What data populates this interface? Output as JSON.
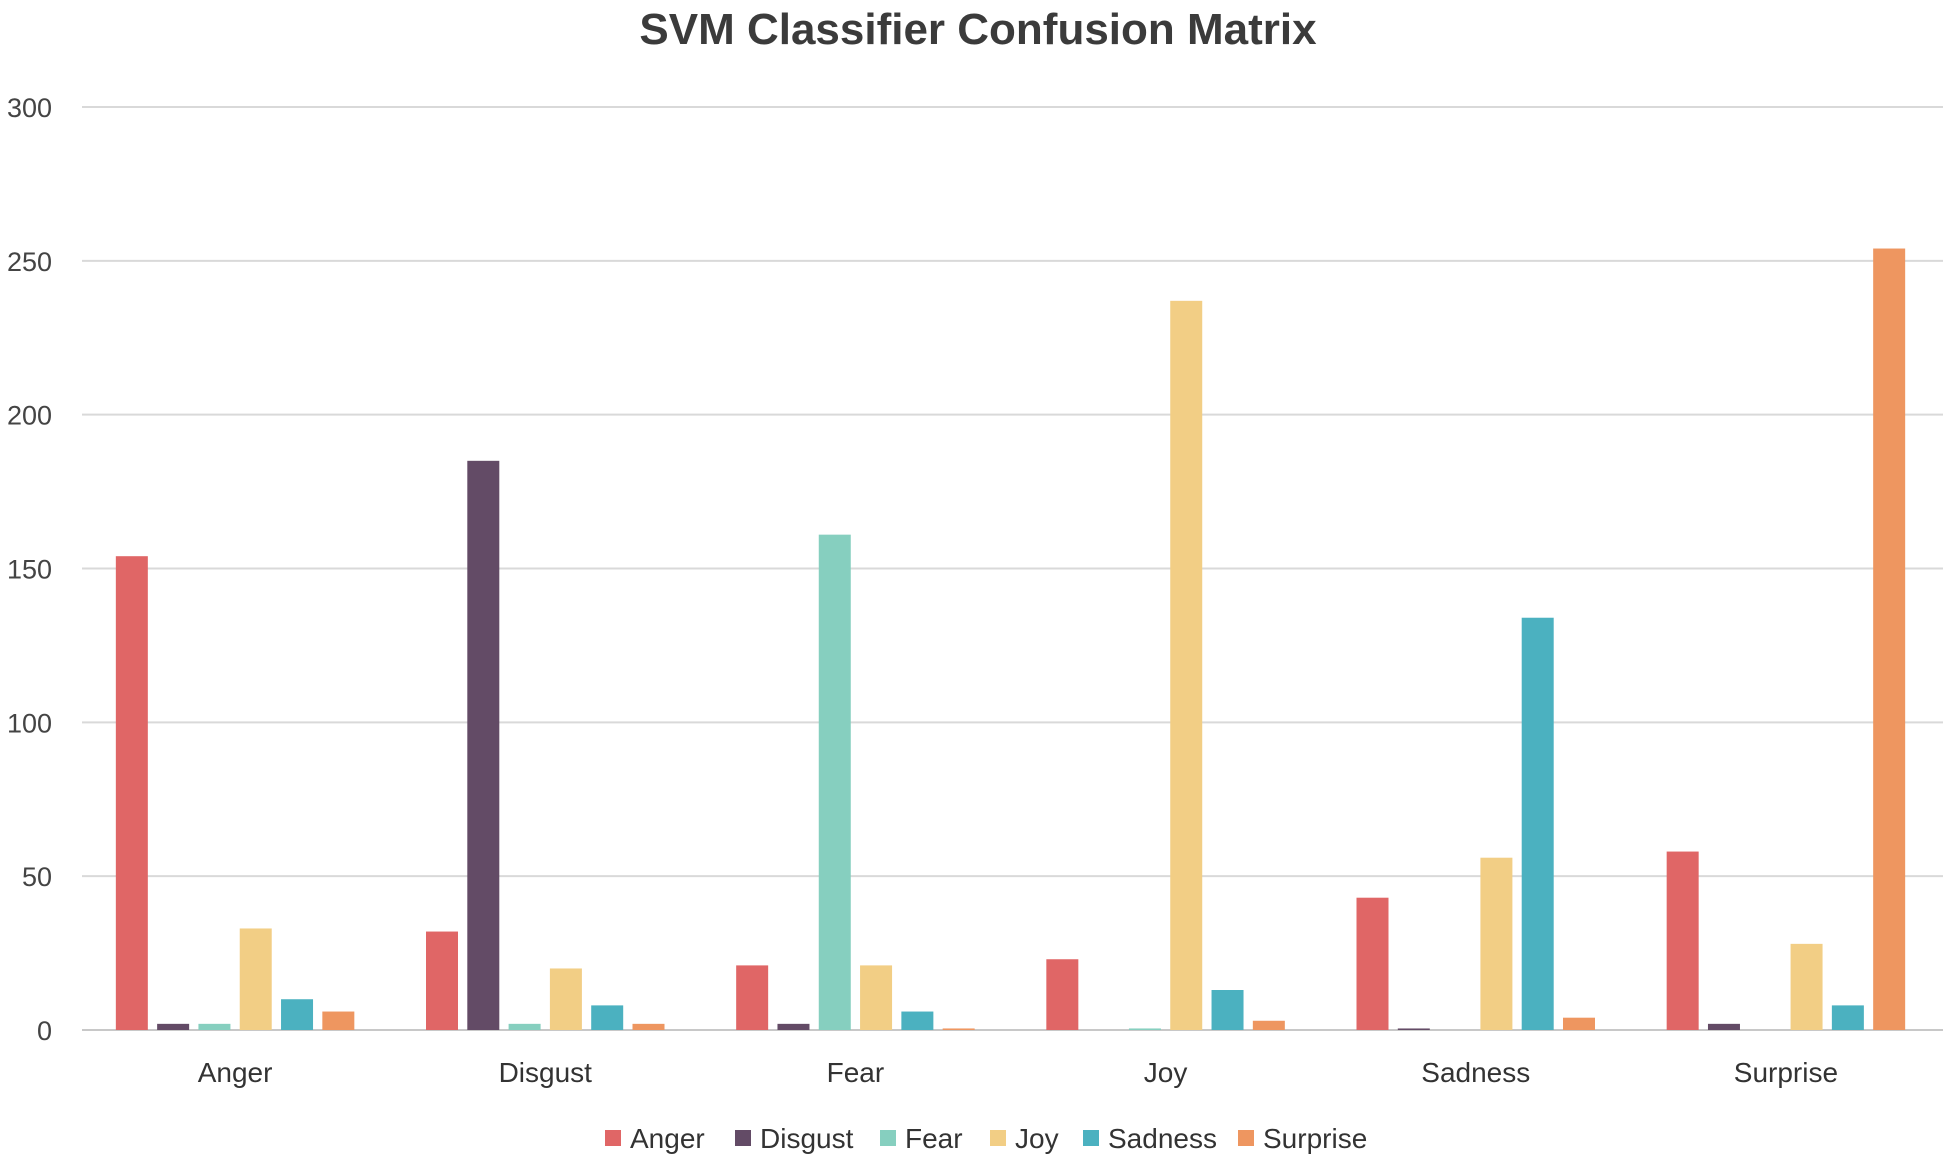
{
  "chart_data": {
    "type": "bar",
    "title": "SVM Classifier Confusion Matrix",
    "xlabel": "",
    "ylabel": "",
    "ylim": [
      0,
      300
    ],
    "yticks": [
      0,
      50,
      100,
      150,
      200,
      250,
      300
    ],
    "grid": true,
    "legend_position": "bottom",
    "categories": [
      "Anger",
      "Disgust",
      "Fear",
      "Joy",
      "Sadness",
      "Surprise"
    ],
    "series": [
      {
        "name": "Anger",
        "color": "#E06666",
        "values": [
          154,
          32,
          21,
          23,
          43,
          58
        ]
      },
      {
        "name": "Disgust",
        "color": "#634B66",
        "values": [
          2,
          185,
          2,
          0,
          0.5,
          2
        ]
      },
      {
        "name": "Fear",
        "color": "#86CFBF",
        "values": [
          2,
          2,
          161,
          0.5,
          0,
          0
        ]
      },
      {
        "name": "Joy",
        "color": "#F2CE85",
        "values": [
          33,
          20,
          21,
          237,
          56,
          28
        ]
      },
      {
        "name": "Sadness",
        "color": "#4BB1C0",
        "values": [
          10,
          8,
          6,
          13,
          134,
          8
        ]
      },
      {
        "name": "Surprise",
        "color": "#EE9660",
        "values": [
          6,
          2,
          0.5,
          3,
          4,
          254
        ]
      }
    ]
  }
}
